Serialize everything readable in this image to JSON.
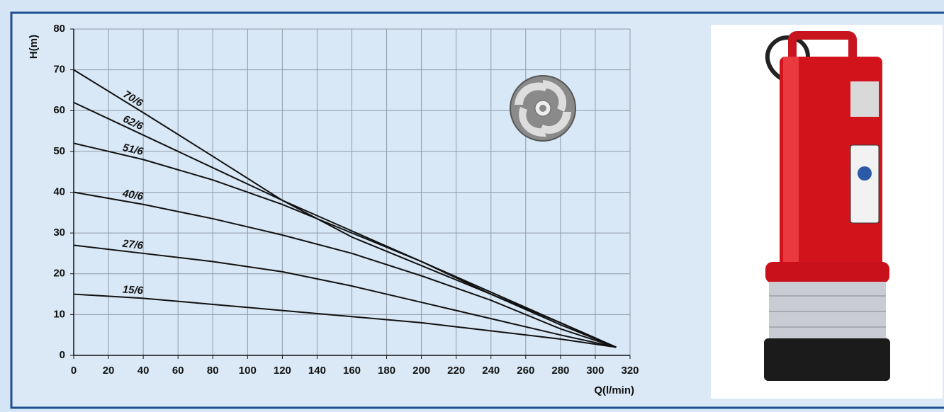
{
  "chart_data": {
    "type": "line",
    "x_label": "Q(l/min)",
    "y_label": "H(m)",
    "x": [
      0,
      40,
      80,
      120,
      160,
      200,
      240,
      280,
      312
    ],
    "series": [
      {
        "name": "70/6",
        "color": "#111111",
        "values": [
          70,
          59.5,
          48.8,
          38,
          29,
          22,
          15,
          8,
          2
        ]
      },
      {
        "name": "62/6",
        "color": "#111111",
        "values": [
          62,
          54,
          46,
          38,
          30.5,
          23,
          15.5,
          8,
          2
        ]
      },
      {
        "name": "51/6",
        "color": "#111111",
        "values": [
          52,
          48,
          43,
          37,
          30,
          23,
          15,
          7.5,
          2
        ]
      },
      {
        "name": "40/6",
        "color": "#111111",
        "values": [
          40,
          37,
          33.5,
          29.5,
          25,
          19.5,
          13.5,
          6.5,
          2
        ]
      },
      {
        "name": "27/6",
        "color": "#111111",
        "values": [
          27,
          25,
          23,
          20.5,
          17,
          13,
          9,
          5,
          2
        ]
      },
      {
        "name": "15/6",
        "color": "#111111",
        "values": [
          15,
          14,
          12.5,
          11,
          9.5,
          8,
          6,
          4,
          2
        ]
      }
    ],
    "xlim": [
      0,
      320
    ],
    "ylim": [
      0,
      80
    ],
    "xticks": [
      0,
      20,
      40,
      60,
      80,
      100,
      120,
      140,
      160,
      180,
      200,
      220,
      240,
      260,
      280,
      300,
      320
    ],
    "yticks": [
      0,
      10,
      20,
      30,
      40,
      50,
      60,
      70,
      80
    ],
    "grid": true
  }
}
